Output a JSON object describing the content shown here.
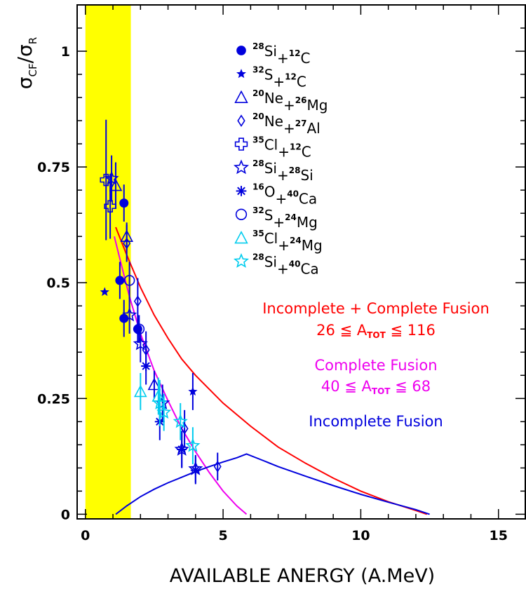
{
  "chart_data": {
    "type": "scatter",
    "xlabel": "AVAILABLE ANERGY (A.MeV)",
    "ylabel": {
      "main": "σ",
      "main_sub": "CF",
      "sep": "/",
      "den": "σ",
      "den_sub": "R"
    },
    "xlim": [
      -0.3,
      16
    ],
    "ylim": [
      -0.01,
      1.1
    ],
    "x_ticks": [
      0,
      5,
      10,
      15
    ],
    "x_tick_labels": [
      "0",
      "5",
      "10",
      "15"
    ],
    "y_ticks": [
      0,
      0.25,
      0.5,
      0.75,
      1
    ],
    "y_tick_labels": [
      "0",
      "0.25",
      "0.5",
      "0.75",
      "1"
    ],
    "grid": false,
    "legend_position": "top-center",
    "shaded_region": {
      "x_from": 0,
      "x_to": 1.65,
      "color": "#ffff00"
    },
    "series": [
      {
        "name": {
          "a1": "28",
          "e1": "Si",
          "a2": "12",
          "e2": "C"
        },
        "marker": "filled-circle",
        "color": "#0000dd",
        "points": [
          [
            1.4,
            0.672,
            0.04
          ],
          [
            1.25,
            0.505,
            0.04
          ],
          [
            1.4,
            0.423,
            0.04
          ],
          [
            1.9,
            0.4,
            0.03
          ]
        ]
      },
      {
        "name": {
          "a1": "32",
          "e1": "S",
          "a2": "12",
          "e2": "C"
        },
        "marker": "filled-star",
        "color": "#0000dd",
        "points": [
          [
            0.7,
            0.48,
            0.0
          ],
          [
            3.9,
            0.265,
            0.04
          ]
        ]
      },
      {
        "name": {
          "a1": "20",
          "e1": "Ne",
          "a2": "26",
          "e2": "Mg"
        },
        "marker": "triangle",
        "color": "#0000dd",
        "points": [
          [
            1.5,
            0.6,
            0.03
          ],
          [
            1.1,
            0.71,
            0.05
          ],
          [
            2.5,
            0.28,
            0.03
          ]
        ]
      },
      {
        "name": {
          "a1": "20",
          "e1": "Ne",
          "a2": "27",
          "e2": "Al"
        },
        "marker": "diamond",
        "color": "#0000dd",
        "points": [
          [
            1.5,
            0.585,
            0.04
          ],
          [
            1.9,
            0.46,
            0.05
          ],
          [
            2.2,
            0.355,
            0.04
          ],
          [
            3.6,
            0.185,
            0.04
          ],
          [
            4.8,
            0.103,
            0.03
          ]
        ]
      },
      {
        "name": {
          "a1": "35",
          "e1": "Cl",
          "a2": "12",
          "e2": "C"
        },
        "marker": "cross",
        "color": "#0000dd",
        "points": [
          [
            0.75,
            0.722,
            0.13
          ],
          [
            0.9,
            0.665,
            0.07
          ]
        ]
      },
      {
        "name": {
          "a1": "28",
          "e1": "Si",
          "a2": "28",
          "e2": "Si"
        },
        "marker": "open-star",
        "color": "#0000dd",
        "points": [
          [
            0.95,
            0.725,
            0.05
          ],
          [
            1.6,
            0.43,
            0.04
          ],
          [
            2.0,
            0.368,
            0.04
          ],
          [
            2.8,
            0.24,
            0.04
          ],
          [
            3.5,
            0.14,
            0.04
          ],
          [
            4.0,
            0.098,
            0.03
          ]
        ]
      },
      {
        "name": {
          "a1": "16",
          "e1": "O",
          "a2": "40",
          "e2": "Ca"
        },
        "marker": "asterisk",
        "color": "#0000dd",
        "points": [
          [
            2.2,
            0.32,
            0.04
          ],
          [
            2.7,
            0.2,
            0.04
          ],
          [
            3.5,
            0.14,
            0.04
          ],
          [
            4.0,
            0.095,
            0.03
          ]
        ]
      },
      {
        "name": {
          "a1": "32",
          "e1": "S",
          "a2": "24",
          "e2": "Mg"
        },
        "marker": "open-circle",
        "color": "#0000dd",
        "points": [
          [
            1.6,
            0.505,
            0.04
          ],
          [
            1.95,
            0.4,
            0.03
          ]
        ]
      },
      {
        "name": {
          "a1": "35",
          "e1": "Cl",
          "a2": "24",
          "e2": "Mg"
        },
        "marker": "triangle",
        "color": "#00ccee",
        "points": [
          [
            2.0,
            0.265,
            0.04
          ],
          [
            2.65,
            0.255,
            0.04
          ]
        ]
      },
      {
        "name": {
          "a1": "28",
          "e1": "Si",
          "a2": "40",
          "e2": "Ca"
        },
        "marker": "open-star",
        "color": "#00ccee",
        "points": [
          [
            2.7,
            0.24,
            0.05
          ],
          [
            2.85,
            0.22,
            0.04
          ],
          [
            3.45,
            0.2,
            0.04
          ],
          [
            3.9,
            0.148,
            0.04
          ]
        ]
      }
    ],
    "curves": [
      {
        "color": "#ff0000",
        "points": [
          [
            1.1,
            0.62
          ],
          [
            1.5,
            0.56
          ],
          [
            2,
            0.49
          ],
          [
            2.5,
            0.43
          ],
          [
            3,
            0.38
          ],
          [
            3.5,
            0.335
          ],
          [
            4,
            0.3
          ],
          [
            5,
            0.24
          ],
          [
            6,
            0.19
          ],
          [
            7,
            0.145
          ],
          [
            8,
            0.11
          ],
          [
            9,
            0.078
          ],
          [
            10,
            0.05
          ],
          [
            11,
            0.027
          ],
          [
            12,
            0.008
          ],
          [
            12.4,
            0.0
          ]
        ]
      },
      {
        "color": "#ee00ee",
        "points": [
          [
            1.05,
            0.6
          ],
          [
            1.3,
            0.54
          ],
          [
            1.6,
            0.47
          ],
          [
            2,
            0.39
          ],
          [
            2.5,
            0.31
          ],
          [
            3,
            0.245
          ],
          [
            3.5,
            0.185
          ],
          [
            4,
            0.135
          ],
          [
            4.5,
            0.09
          ],
          [
            5,
            0.05
          ],
          [
            5.5,
            0.018
          ],
          [
            5.85,
            0.0
          ]
        ]
      },
      {
        "color": "#0000dd",
        "points": [
          [
            1.1,
            0.0
          ],
          [
            1.5,
            0.018
          ],
          [
            2,
            0.038
          ],
          [
            2.5,
            0.054
          ],
          [
            3,
            0.068
          ],
          [
            3.5,
            0.08
          ],
          [
            4,
            0.092
          ],
          [
            4.5,
            0.103
          ],
          [
            5,
            0.113
          ],
          [
            5.5,
            0.122
          ],
          [
            5.85,
            0.13
          ],
          [
            6.5,
            0.115
          ],
          [
            7,
            0.103
          ],
          [
            8,
            0.082
          ],
          [
            9,
            0.062
          ],
          [
            10,
            0.043
          ],
          [
            11,
            0.026
          ],
          [
            12,
            0.01
          ],
          [
            12.5,
            0.0
          ]
        ]
      }
    ],
    "annotations": [
      {
        "color": "#ff0000",
        "line1": "Incomplete + Complete Fusion",
        "line2": {
          "prefix": "26 ≦ A",
          "sub": "TOT",
          "suffix": " ≦ 116"
        }
      },
      {
        "color": "#ee00ee",
        "line1": "Complete Fusion",
        "line2": {
          "prefix": "40 ≦ A",
          "sub": "TOT",
          "suffix": " ≦ 68"
        }
      },
      {
        "color": "#0000dd",
        "line1": "Incomplete Fusion"
      }
    ]
  }
}
